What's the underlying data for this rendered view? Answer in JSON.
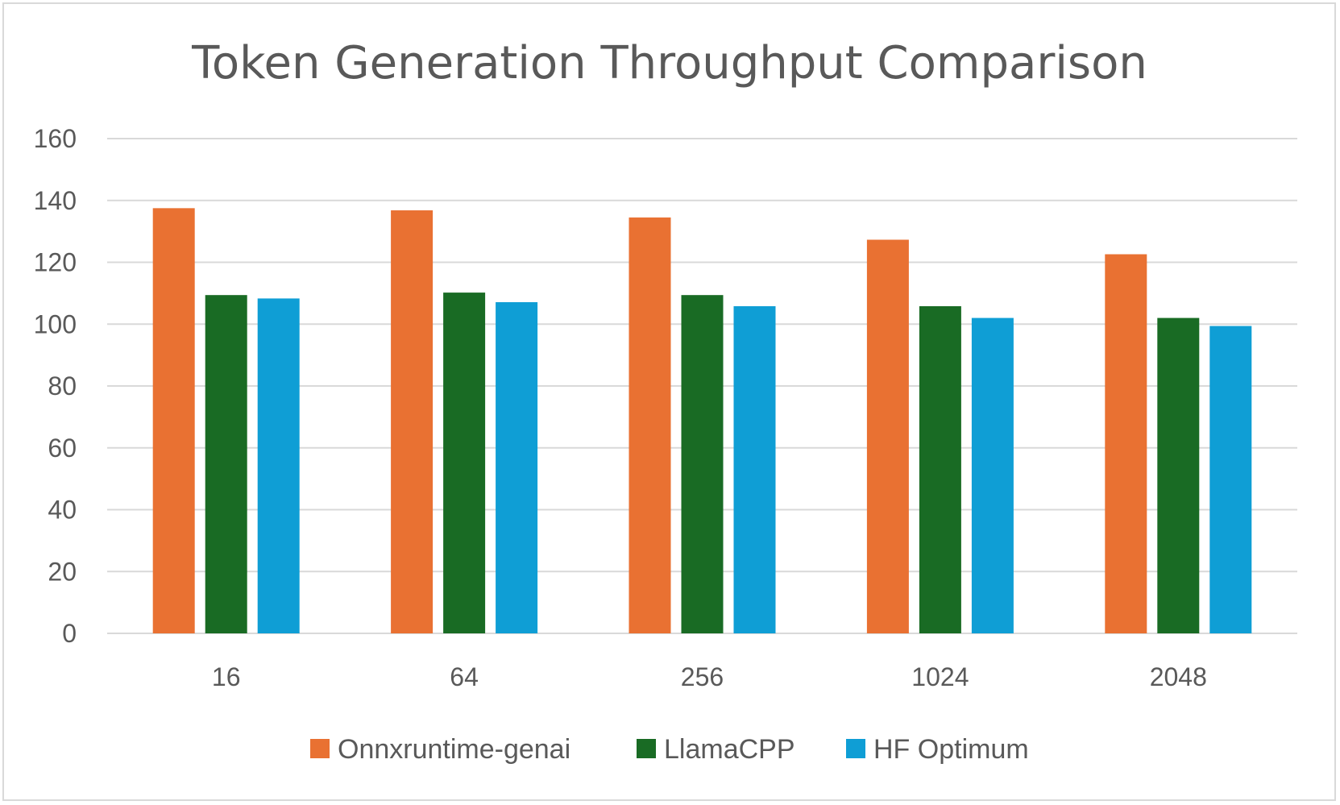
{
  "chart_data": {
    "type": "bar",
    "title": "Token Generation Throughput Comparison",
    "xlabel": "",
    "ylabel": "",
    "categories": [
      "16",
      "64",
      "256",
      "1024",
      "2048"
    ],
    "ylim": [
      0,
      160
    ],
    "yticks": [
      "0",
      "20",
      "40",
      "60",
      "80",
      "100",
      "120",
      "140",
      "160"
    ],
    "grid": true,
    "legend_position": "bottom",
    "series": [
      {
        "name": "Onnxruntime-genai",
        "color": "#e97132",
        "values": [
          137.5,
          136.8,
          134.5,
          127.3,
          122.6
        ]
      },
      {
        "name": "LlamaCPP",
        "color": "#196b24",
        "values": [
          109.4,
          110.2,
          109.4,
          105.8,
          102.0
        ]
      },
      {
        "name": "HF Optimum",
        "color": "#0f9ed5",
        "values": [
          108.3,
          107.1,
          105.8,
          102.0,
          99.4
        ]
      }
    ]
  }
}
